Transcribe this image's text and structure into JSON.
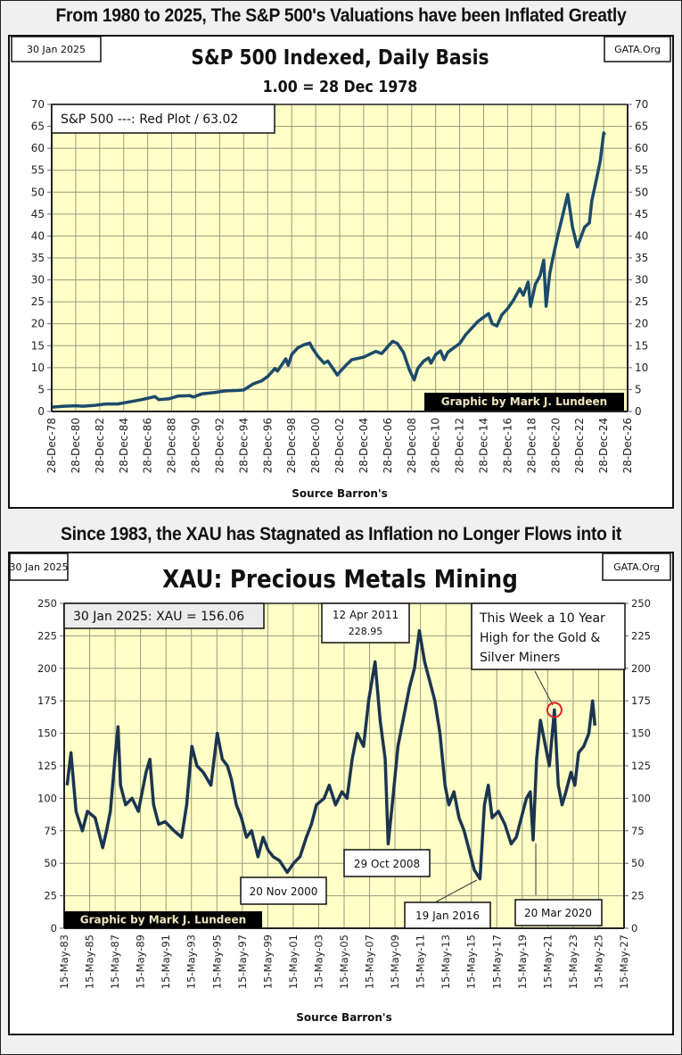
{
  "headlines": {
    "top": "From 1980 to 2025, The S&P 500's Valuations have been Inflated Greatly",
    "middle": "Since 1983, the XAU has Stagnated as Inflation no Longer Flows into it"
  },
  "chart_data": [
    {
      "type": "line",
      "date_box": "30 Jan 2025",
      "source_box": "GATA.Org",
      "title": "S&P 500 Indexed, Daily Basis",
      "subtitle": "1.00 = 28 Dec 1978",
      "xlabel": "Source Barron's",
      "ylabel": "",
      "ylim": [
        0,
        70
      ],
      "yticks": [
        0,
        5,
        10,
        15,
        20,
        25,
        30,
        35,
        40,
        45,
        50,
        55,
        60,
        65,
        70
      ],
      "xlim": [
        1978.99,
        2026.99
      ],
      "xticks": [
        1978.99,
        1980.99,
        1982.99,
        1984.99,
        1986.99,
        1988.99,
        1990.99,
        1992.99,
        1994.99,
        1996.99,
        1998.99,
        2000.99,
        2002.99,
        2004.99,
        2006.99,
        2008.99,
        2010.99,
        2012.99,
        2014.99,
        2016.99,
        2018.99,
        2020.99,
        2022.99,
        2024.99,
        2026.99
      ],
      "xtick_labels": [
        "28-Dec-78",
        "28-Dec-80",
        "28-Dec-82",
        "28-Dec-84",
        "28-Dec-86",
        "28-Dec-88",
        "28-Dec-90",
        "28-Dec-92",
        "28-Dec-94",
        "28-Dec-96",
        "28-Dec-98",
        "28-Dec-00",
        "28-Dec-02",
        "28-Dec-04",
        "28-Dec-06",
        "28-Dec-08",
        "28-Dec-10",
        "28-Dec-12",
        "28-Dec-14",
        "28-Dec-16",
        "28-Dec-18",
        "28-Dec-20",
        "28-Dec-22",
        "28-Dec-24",
        "28-Dec-26"
      ],
      "grid": true,
      "legend_box": "S&P 500 ---: Red Plot /  63.02",
      "legend_placement": "top-left",
      "credit": "Graphic by Mark J. Lundeen",
      "credit_placement": "bottom-right",
      "colors": {
        "line": "#1b4a6b",
        "plot_bg": "#ffffc8",
        "grid": "#9a9a7a"
      },
      "series": [
        {
          "name": "S&P 500 Indexed",
          "x": [
            1979.0,
            1980.0,
            1981.0,
            1981.6,
            1982.6,
            1983.5,
            1984.5,
            1985.5,
            1986.5,
            1987.6,
            1987.9,
            1988.8,
            1989.5,
            1990.5,
            1990.8,
            1991.5,
            1992.5,
            1993.5,
            1994.5,
            1995.0,
            1995.8,
            1996.5,
            1997.0,
            1997.6,
            1997.8,
            1998.5,
            1998.7,
            1999.0,
            1999.5,
            2000.0,
            2000.5,
            2000.7,
            2001.2,
            2001.7,
            2002.0,
            2002.5,
            2002.8,
            2003.0,
            2003.5,
            2004.0,
            2005.0,
            2006.0,
            2006.5,
            2007.0,
            2007.4,
            2007.8,
            2008.3,
            2008.8,
            2009.2,
            2009.5,
            2010.0,
            2010.4,
            2010.6,
            2011.0,
            2011.4,
            2011.7,
            2012.0,
            2012.5,
            2013.0,
            2013.5,
            2014.0,
            2014.5,
            2015.0,
            2015.4,
            2015.7,
            2016.1,
            2016.5,
            2017.0,
            2017.5,
            2018.0,
            2018.3,
            2018.7,
            2018.9,
            2019.3,
            2019.7,
            2020.0,
            2020.2,
            2020.5,
            2020.8,
            2021.2,
            2021.6,
            2022.0,
            2022.4,
            2022.8,
            2023.0,
            2023.4,
            2023.8,
            2024.0,
            2024.4,
            2024.7,
            2025.0,
            2025.08
          ],
          "y": [
            1.0,
            1.2,
            1.3,
            1.2,
            1.4,
            1.7,
            1.7,
            2.2,
            2.7,
            3.4,
            2.7,
            2.9,
            3.5,
            3.6,
            3.3,
            4.0,
            4.3,
            4.7,
            4.8,
            4.9,
            6.3,
            7.0,
            8.0,
            9.8,
            9.2,
            12.0,
            10.5,
            13.0,
            14.5,
            15.2,
            15.6,
            14.5,
            12.5,
            11.0,
            11.5,
            9.5,
            8.3,
            9.0,
            10.5,
            11.8,
            12.4,
            13.7,
            13.2,
            14.8,
            16.0,
            15.5,
            13.5,
            9.5,
            7.2,
            9.8,
            11.5,
            12.2,
            11.0,
            13.0,
            13.8,
            11.8,
            13.5,
            14.5,
            15.5,
            17.5,
            19.0,
            20.5,
            21.5,
            22.3,
            20.0,
            19.5,
            22.0,
            23.5,
            25.5,
            28.0,
            26.5,
            29.5,
            24.0,
            29.0,
            31.0,
            34.5,
            24.0,
            31.5,
            35.5,
            40.5,
            45.0,
            49.5,
            42.0,
            37.5,
            39.0,
            42.0,
            43.0,
            48.0,
            53.0,
            57.0,
            63.5,
            63.02
          ]
        }
      ]
    },
    {
      "type": "line",
      "date_box": "30 Jan 2025",
      "source_box": "GATA.Org",
      "title": "XAU: Precious Metals Mining",
      "xlabel": "Source Barron's",
      "ylabel": "",
      "ylim": [
        0,
        250
      ],
      "yticks": [
        0,
        25,
        50,
        75,
        100,
        125,
        150,
        175,
        200,
        225,
        250
      ],
      "xlim": [
        1983.37,
        2027.37
      ],
      "xticks": [
        1983.37,
        1985.37,
        1987.37,
        1989.37,
        1991.37,
        1993.37,
        1995.37,
        1997.37,
        1999.37,
        2001.37,
        2003.37,
        2005.37,
        2007.37,
        2009.37,
        2011.37,
        2013.37,
        2015.37,
        2017.37,
        2019.37,
        2021.37,
        2023.37,
        2025.37,
        2027.37
      ],
      "xtick_labels": [
        "15-May-83",
        "15-May-85",
        "15-May-87",
        "15-May-89",
        "15-May-91",
        "15-May-93",
        "15-May-95",
        "15-May-97",
        "15-May-99",
        "15-May-01",
        "15-May-03",
        "15-May-05",
        "15-May-07",
        "15-May-09",
        "15-May-11",
        "15-May-13",
        "15-May-15",
        "15-May-17",
        "15-May-19",
        "15-May-21",
        "15-May-23",
        "15-May-25",
        "15-May-27"
      ],
      "grid": true,
      "legend_box": "30 Jan 2025: XAU =  156.06",
      "legend_placement": "top-left",
      "credit": "Graphic by Mark J. Lundeen",
      "credit_placement": "bottom-left",
      "colors": {
        "line": "#1b3550",
        "plot_bg": "#ffffc8",
        "grid": "#9a9a7a",
        "highlight_circle": "#e02020"
      },
      "annotations": [
        {
          "label": "12 Apr 2011",
          "label2": "228.95",
          "x": 2011.28,
          "y": 228.95
        },
        {
          "label": "This Week a 10 Year High for the Gold & Silver Miners",
          "x": 2021.9,
          "y": 168
        },
        {
          "label": "29 Oct 2008",
          "x": 2008.83,
          "y": 65
        },
        {
          "label": "20 Nov 2000",
          "x": 2000.89,
          "y": 41
        },
        {
          "label": "19 Jan 2016",
          "x": 2016.05,
          "y": 38
        },
        {
          "label": "20 Mar 2020",
          "x": 2020.22,
          "y": 68
        }
      ],
      "series": [
        {
          "name": "XAU",
          "x": [
            1983.6,
            1983.9,
            1984.3,
            1984.8,
            1985.2,
            1985.8,
            1986.4,
            1986.7,
            1987.0,
            1987.4,
            1987.6,
            1987.8,
            1988.2,
            1988.7,
            1989.2,
            1989.8,
            1990.1,
            1990.4,
            1990.8,
            1991.3,
            1992.0,
            1992.6,
            1993.0,
            1993.4,
            1993.8,
            1994.3,
            1994.9,
            1995.4,
            1995.8,
            1996.2,
            1996.5,
            1996.9,
            1997.3,
            1997.7,
            1998.1,
            1998.6,
            1999.0,
            1999.4,
            1999.8,
            2000.3,
            2000.9,
            2001.4,
            2001.9,
            2002.4,
            2002.8,
            2003.2,
            2003.8,
            2004.2,
            2004.7,
            2005.2,
            2005.6,
            2006.0,
            2006.4,
            2006.9,
            2007.3,
            2007.8,
            2008.2,
            2008.6,
            2008.83,
            2009.2,
            2009.6,
            2010.0,
            2010.5,
            2010.9,
            2011.28,
            2011.7,
            2012.1,
            2012.5,
            2012.9,
            2013.3,
            2013.6,
            2014.0,
            2014.4,
            2014.8,
            2015.2,
            2015.6,
            2016.05,
            2016.4,
            2016.7,
            2017.0,
            2017.5,
            2018.0,
            2018.5,
            2018.9,
            2019.3,
            2019.7,
            2020.0,
            2020.22,
            2020.5,
            2020.8,
            2021.2,
            2021.5,
            2021.9,
            2022.2,
            2022.5,
            2022.8,
            2023.2,
            2023.5,
            2023.8,
            2024.2,
            2024.6,
            2024.9,
            2025.08
          ],
          "y": [
            110,
            135,
            90,
            75,
            90,
            85,
            62,
            75,
            90,
            135,
            155,
            110,
            95,
            100,
            90,
            120,
            130,
            95,
            80,
            82,
            75,
            70,
            95,
            140,
            125,
            120,
            110,
            150,
            130,
            125,
            115,
            95,
            85,
            70,
            75,
            55,
            70,
            60,
            55,
            52,
            43,
            50,
            55,
            70,
            80,
            95,
            100,
            110,
            95,
            105,
            100,
            130,
            150,
            140,
            175,
            205,
            160,
            130,
            65,
            100,
            140,
            160,
            185,
            200,
            228.95,
            205,
            190,
            175,
            150,
            110,
            95,
            105,
            85,
            75,
            60,
            45,
            38,
            95,
            110,
            85,
            90,
            80,
            65,
            70,
            85,
            100,
            105,
            68,
            130,
            160,
            140,
            125,
            168,
            110,
            95,
            105,
            120,
            110,
            135,
            140,
            150,
            175,
            156.06
          ]
        }
      ]
    }
  ]
}
